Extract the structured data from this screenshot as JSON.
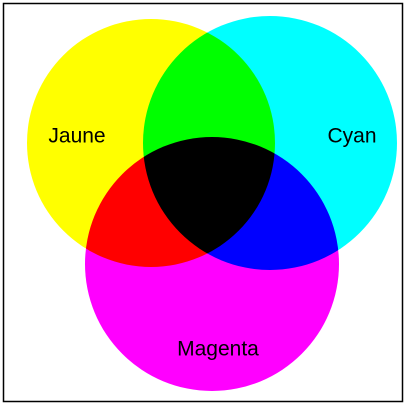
{
  "labels": {
    "yellow": "Jaune",
    "cyan": "Cyan",
    "magenta": "Magenta"
  }
}
